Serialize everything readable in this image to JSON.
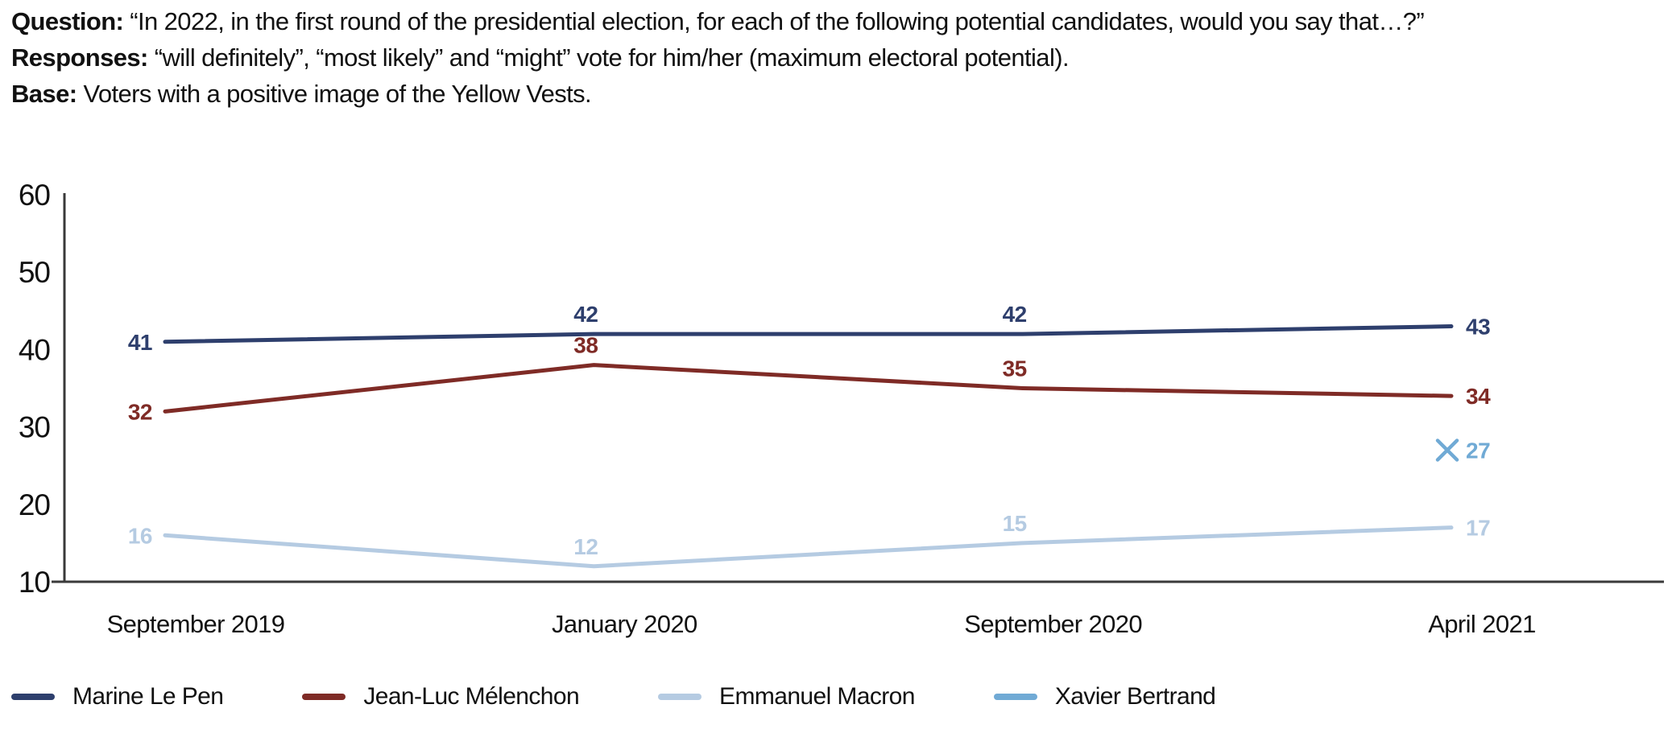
{
  "header": {
    "lines": [
      {
        "label": "Question:",
        "text": "“In 2022, in the first round of the presidential election, for each of the following potential candidates, would you say that…?”"
      },
      {
        "label": "Responses:",
        "text": "“will definitely”, “most likely” and “might” vote for him/her (maximum electoral potential)."
      },
      {
        "label": "Base:",
        "text": "Voters with a positive image of the Yellow Vests."
      }
    ]
  },
  "chart_data": {
    "type": "line",
    "categories": [
      "September 2019",
      "January 2020",
      "September 2020",
      "April 2021"
    ],
    "series": [
      {
        "name": "Marine Le Pen",
        "color": "#2e3f6d",
        "values": [
          41,
          42,
          42,
          43
        ],
        "marker": "none"
      },
      {
        "name": "Jean-Luc Mélenchon",
        "color": "#7f2b26",
        "values": [
          32,
          38,
          35,
          34
        ],
        "marker": "none"
      },
      {
        "name": "Emmanuel Macron",
        "color": "#b5cbe2",
        "values": [
          16,
          12,
          15,
          17
        ],
        "marker": "none"
      },
      {
        "name": "Xavier Bertrand",
        "color": "#70aad5",
        "values": [
          null,
          null,
          null,
          27
        ],
        "marker": "x"
      }
    ],
    "ylim": [
      10,
      60
    ],
    "yticks": [
      10,
      20,
      30,
      40,
      50,
      60
    ],
    "grid": false,
    "data_labels": true,
    "legend_position": "bottom",
    "axis_color": "#3a3a3a",
    "tick_label_color": "#111111"
  }
}
